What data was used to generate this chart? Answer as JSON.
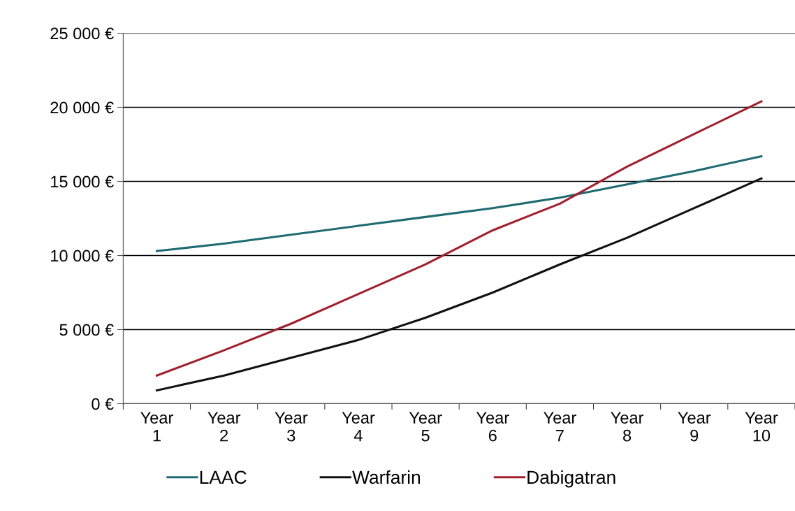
{
  "chart_data": {
    "type": "line",
    "categories": [
      "Year\n1",
      "Year\n2",
      "Year\n3",
      "Year\n4",
      "Year\n5",
      "Year\n6",
      "Year\n7",
      "Year\n8",
      "Year\n9",
      "Year\n10"
    ],
    "series": [
      {
        "name": "LAAC",
        "color": "#1f6b72",
        "values": [
          10300,
          10800,
          11400,
          12000,
          12600,
          13200,
          13900,
          14800,
          15700,
          16700
        ]
      },
      {
        "name": "Warfarin",
        "color": "#111111",
        "values": [
          900,
          1900,
          3100,
          4300,
          5800,
          7500,
          9400,
          11200,
          13200,
          15200
        ]
      },
      {
        "name": "Dabigatran",
        "color": "#a0202e",
        "values": [
          1900,
          3600,
          5400,
          7400,
          9400,
          11700,
          13500,
          16000,
          18200,
          20400
        ]
      }
    ],
    "ylim": [
      0,
      25000
    ],
    "yticks": [
      {
        "value": 0,
        "label": "0 €"
      },
      {
        "value": 5000,
        "label": "5 000 €"
      },
      {
        "value": 10000,
        "label": "10 000 €"
      },
      {
        "value": 15000,
        "label": "15 000 €"
      },
      {
        "value": 20000,
        "label": "20 000 €"
      },
      {
        "value": 25000,
        "label": "25 000 €"
      }
    ],
    "grid": "y",
    "legend": "bottom",
    "marker": "none",
    "line_style": "solid"
  }
}
